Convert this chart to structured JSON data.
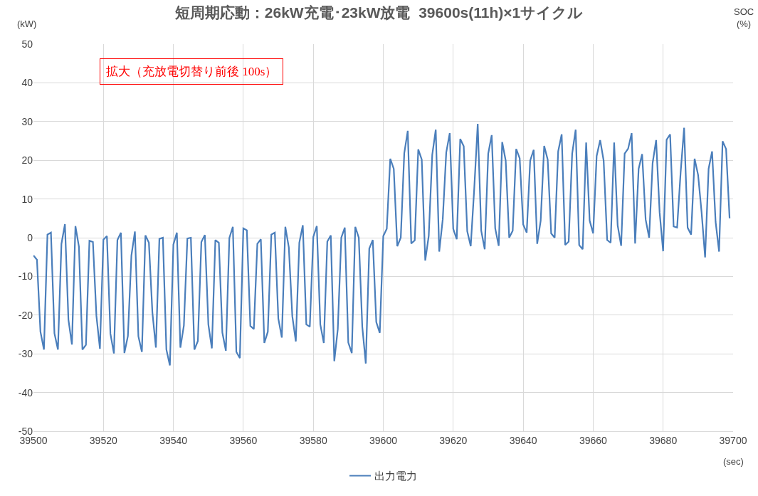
{
  "chart_data": {
    "type": "line",
    "title": "短周期応動：26kW充電･23kW放電  39600s(11h)×1サイクル",
    "ylabel": "(kW)",
    "xlabel": "(sec)",
    "annotations": [
      "拡大（充放電切替り前後 100s）",
      "SOC\n(%)"
    ],
    "xlim": [
      39500,
      39700
    ],
    "xticks": [
      39500,
      39520,
      39540,
      39560,
      39580,
      39600,
      39620,
      39640,
      39660,
      39680,
      39700
    ],
    "ylim": [
      -50,
      50
    ],
    "yticks": [
      -50,
      -40,
      -30,
      -20,
      -10,
      0,
      10,
      20,
      30,
      40,
      50
    ],
    "grid": true,
    "legend": "bottom",
    "marker": "none",
    "line_style": "solid",
    "x": [
      39500,
      39501,
      39502,
      39503,
      39504,
      39505,
      39506,
      39507,
      39508,
      39509,
      39510,
      39511,
      39512,
      39513,
      39514,
      39515,
      39516,
      39517,
      39518,
      39519,
      39520,
      39521,
      39522,
      39523,
      39524,
      39525,
      39526,
      39527,
      39528,
      39529,
      39530,
      39531,
      39532,
      39533,
      39534,
      39535,
      39536,
      39537,
      39538,
      39539,
      39540,
      39541,
      39542,
      39543,
      39544,
      39545,
      39546,
      39547,
      39548,
      39549,
      39550,
      39551,
      39552,
      39553,
      39554,
      39555,
      39556,
      39557,
      39558,
      39559,
      39560,
      39561,
      39562,
      39563,
      39564,
      39565,
      39566,
      39567,
      39568,
      39569,
      39570,
      39571,
      39572,
      39573,
      39574,
      39575,
      39576,
      39577,
      39578,
      39579,
      39580,
      39581,
      39582,
      39583,
      39584,
      39585,
      39586,
      39587,
      39588,
      39589,
      39590,
      39591,
      39592,
      39593,
      39594,
      39595,
      39596,
      39597,
      39598,
      39599,
      39600,
      39601,
      39602,
      39603,
      39604,
      39605,
      39606,
      39607,
      39608,
      39609,
      39610,
      39611,
      39612,
      39613,
      39614,
      39615,
      39616,
      39617,
      39618,
      39619,
      39620,
      39621,
      39622,
      39623,
      39624,
      39625,
      39626,
      39627,
      39628,
      39629,
      39630,
      39631,
      39632,
      39633,
      39634,
      39635,
      39636,
      39637,
      39638,
      39639,
      39640,
      39641,
      39642,
      39643,
      39644,
      39645,
      39646,
      39647,
      39648,
      39649,
      39650,
      39651,
      39652,
      39653,
      39654,
      39655,
      39656,
      39657,
      39658,
      39659,
      39660,
      39661,
      39662,
      39663,
      39664,
      39665,
      39666,
      39667,
      39668,
      39669,
      39670,
      39671,
      39672,
      39673,
      39674,
      39675,
      39676,
      39677,
      39678,
      39679,
      39680,
      39681,
      39682,
      39683,
      39684,
      39685,
      39686,
      39687,
      39688,
      39689,
      39690,
      39691,
      39692,
      39693,
      39694,
      39695,
      39696,
      39697,
      39698,
      39699
    ],
    "series": [
      {
        "name": "出力電力",
        "color": "#4a7ebb",
        "values": [
          -4.6,
          -5.7,
          -24.3,
          -28.9,
          0.8,
          1.3,
          -24.7,
          -28.9,
          -1.6,
          3.5,
          -21.2,
          -27.6,
          3.0,
          -2.3,
          -28.9,
          -27.7,
          -0.8,
          -1.1,
          -20.2,
          -28.7,
          -0.5,
          0.4,
          -24.8,
          -29.9,
          -0.6,
          1.3,
          -29.8,
          -25.4,
          -4.6,
          1.6,
          -25.5,
          -29.5,
          0.6,
          -1.3,
          -19.3,
          -28.4,
          -0.3,
          0,
          -28.9,
          -33,
          -1.8,
          1.3,
          -28.4,
          -22.7,
          -0.2,
          0,
          -28.9,
          -26.7,
          -1.1,
          0.7,
          -22.4,
          -28.6,
          -0.6,
          -1.3,
          -24.5,
          -29.2,
          -0.1,
          2.8,
          -29.5,
          -31.1,
          2.4,
          1.9,
          -22.8,
          -23.6,
          -1.6,
          -0.4,
          -27.2,
          -24.3,
          0.8,
          1.3,
          -20.9,
          -25.8,
          2.8,
          -2.5,
          -20.3,
          -26.8,
          -1.3,
          3.2,
          -22.4,
          -23.0,
          0.2,
          3.0,
          -22.4,
          -27.2,
          -1.0,
          0.6,
          -31.9,
          -23.6,
          0,
          2.6,
          -27.1,
          -29.8,
          2.8,
          0,
          -23.0,
          -32.5,
          -2.8,
          -0.6,
          -21.8,
          -24.6,
          0.4,
          2.3,
          20.4,
          17.8,
          -2.2,
          0,
          21.8,
          27.6,
          -1.5,
          -0.7,
          22.8,
          20.2,
          -5.9,
          0.5,
          21.4,
          27.9,
          -3.6,
          4.7,
          22.0,
          27.0,
          2.3,
          -0.4,
          25.5,
          23.6,
          1.7,
          -2.2,
          12.6,
          29.4,
          1.8,
          -3.0,
          21.7,
          26.5,
          2.4,
          -2.1,
          24.7,
          19.9,
          0,
          1.8,
          22.9,
          20.5,
          3.4,
          1.3,
          19.9,
          22.7,
          -1.6,
          4.4,
          23.7,
          20.2,
          1.1,
          0,
          22.3,
          26.7,
          -1.9,
          -1.0,
          21.7,
          27.9,
          -1.9,
          -3.0,
          24.6,
          4.4,
          1.1,
          21.1,
          25.2,
          19.9,
          -0.6,
          -1.3,
          24.6,
          3.2,
          -2.1,
          21.7,
          23.0,
          27.0,
          -1.5,
          17.8,
          21.6,
          4.7,
          0,
          19.3,
          25.2,
          6.5,
          -3.5,
          25.3,
          26.7,
          2.9,
          2.6,
          16.8,
          28.4,
          2.6,
          0.8,
          20.4,
          16.2,
          6.5,
          -5.1,
          17.8,
          22.3,
          4.1,
          -3.6,
          24.9,
          22.9,
          5.0
        ]
      }
    ]
  }
}
